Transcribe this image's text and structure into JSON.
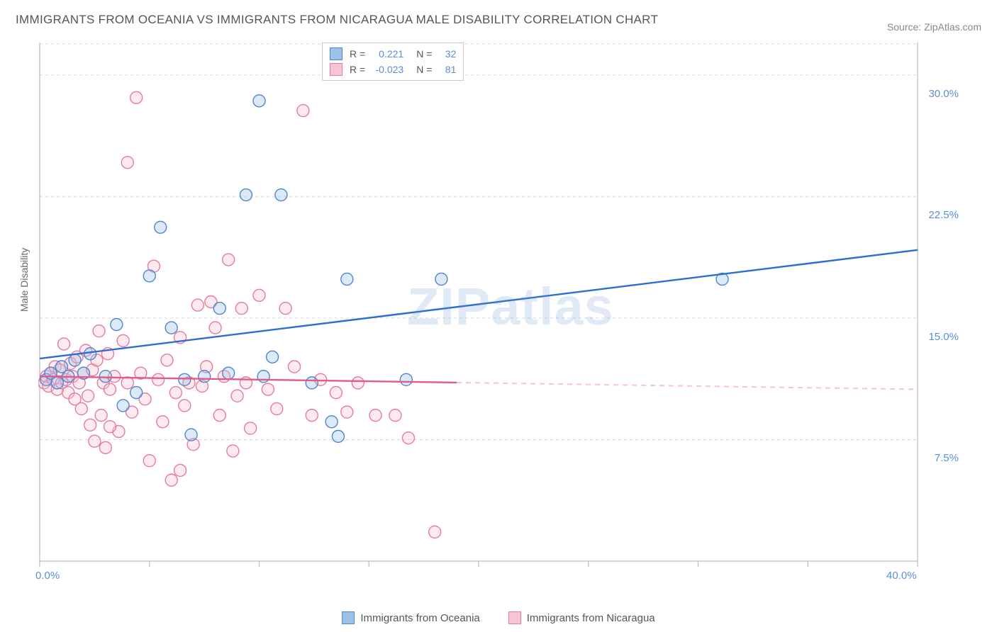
{
  "title": "IMMIGRANTS FROM OCEANIA VS IMMIGRANTS FROM NICARAGUA MALE DISABILITY CORRELATION CHART",
  "source": "Source: ZipAtlas.com",
  "watermark": "ZIPatlas",
  "y_label": "Male Disability",
  "chart": {
    "type": "scatter",
    "xlim": [
      0,
      40
    ],
    "ylim": [
      0,
      32
    ],
    "x_ticks": [
      0,
      5,
      10,
      15,
      20,
      25,
      30,
      35,
      40
    ],
    "x_tick_labels": {
      "0": "0.0%",
      "40": "40.0%"
    },
    "y_ticks": [
      7.5,
      15.0,
      22.5,
      30.0
    ],
    "y_tick_labels": [
      "7.5%",
      "15.0%",
      "22.5%",
      "30.0%"
    ],
    "grid_color": "#d9d9d9",
    "axis_color": "#bfbfbf",
    "background": "#ffffff",
    "marker_radius": 8.5,
    "marker_stroke_width": 1.4,
    "fill_opacity": 0.35
  },
  "series": [
    {
      "name": "Immigrants from Oceania",
      "color_fill": "#9cc2ec",
      "color_stroke": "#4f86d0",
      "line_color": "#2e6ecf",
      "R": "0.221",
      "N": "32",
      "trend": {
        "x1": 0,
        "y1": 12.5,
        "x2": 40,
        "y2": 19.2,
        "solid_to_x": 40
      },
      "points": [
        [
          0.3,
          11.2
        ],
        [
          0.5,
          11.6
        ],
        [
          0.8,
          11.0
        ],
        [
          1.0,
          12.0
        ],
        [
          1.3,
          11.4
        ],
        [
          1.6,
          12.4
        ],
        [
          2.0,
          11.6
        ],
        [
          2.3,
          12.8
        ],
        [
          3.0,
          11.4
        ],
        [
          3.5,
          14.6
        ],
        [
          4.4,
          10.4
        ],
        [
          5.0,
          17.6
        ],
        [
          5.5,
          20.6
        ],
        [
          6.0,
          14.4
        ],
        [
          6.6,
          11.2
        ],
        [
          7.5,
          11.4
        ],
        [
          8.2,
          15.6
        ],
        [
          8.6,
          11.6
        ],
        [
          9.4,
          22.6
        ],
        [
          10.0,
          28.4
        ],
        [
          10.2,
          11.4
        ],
        [
          10.6,
          12.6
        ],
        [
          11.0,
          22.6
        ],
        [
          12.4,
          11.0
        ],
        [
          13.3,
          8.6
        ],
        [
          13.6,
          7.7
        ],
        [
          14.0,
          17.4
        ],
        [
          16.7,
          11.2
        ],
        [
          18.3,
          17.4
        ],
        [
          31.1,
          17.4
        ],
        [
          6.9,
          7.8
        ],
        [
          3.8,
          9.6
        ]
      ]
    },
    {
      "name": "Immigrants from Nicaragua",
      "color_fill": "#f6c4d2",
      "color_stroke": "#e77aa0",
      "line_color": "#e25b88",
      "R": "-0.023",
      "N": "81",
      "trend": {
        "x1": 0,
        "y1": 11.4,
        "x2": 40,
        "y2": 10.6,
        "solid_to_x": 19
      },
      "points": [
        [
          0.2,
          11.0
        ],
        [
          0.3,
          11.4
        ],
        [
          0.4,
          10.8
        ],
        [
          0.5,
          11.6
        ],
        [
          0.6,
          11.2
        ],
        [
          0.7,
          12.0
        ],
        [
          0.8,
          10.6
        ],
        [
          0.9,
          11.8
        ],
        [
          1.0,
          11.0
        ],
        [
          1.1,
          13.4
        ],
        [
          1.2,
          11.2
        ],
        [
          1.3,
          10.4
        ],
        [
          1.4,
          12.2
        ],
        [
          1.5,
          11.4
        ],
        [
          1.6,
          10.0
        ],
        [
          1.7,
          12.6
        ],
        [
          1.8,
          11.0
        ],
        [
          1.9,
          9.4
        ],
        [
          2.0,
          11.6
        ],
        [
          2.1,
          13.0
        ],
        [
          2.2,
          10.2
        ],
        [
          2.3,
          8.4
        ],
        [
          2.4,
          11.8
        ],
        [
          2.5,
          7.4
        ],
        [
          2.6,
          12.4
        ],
        [
          2.7,
          14.2
        ],
        [
          2.8,
          9.0
        ],
        [
          2.9,
          11.0
        ],
        [
          3.0,
          7.0
        ],
        [
          3.1,
          12.8
        ],
        [
          3.2,
          10.6
        ],
        [
          3.4,
          11.4
        ],
        [
          3.6,
          8.0
        ],
        [
          3.8,
          13.6
        ],
        [
          4.0,
          11.0
        ],
        [
          4.2,
          9.2
        ],
        [
          4.4,
          28.6
        ],
        [
          4.6,
          11.6
        ],
        [
          4.8,
          10.0
        ],
        [
          5.0,
          6.2
        ],
        [
          5.2,
          18.2
        ],
        [
          5.4,
          11.2
        ],
        [
          5.6,
          8.6
        ],
        [
          5.8,
          12.4
        ],
        [
          6.0,
          5.0
        ],
        [
          6.2,
          10.4
        ],
        [
          6.4,
          13.8
        ],
        [
          6.6,
          9.6
        ],
        [
          6.8,
          11.0
        ],
        [
          7.0,
          7.2
        ],
        [
          7.2,
          15.8
        ],
        [
          7.4,
          10.8
        ],
        [
          7.6,
          12.0
        ],
        [
          7.8,
          16.0
        ],
        [
          8.0,
          14.4
        ],
        [
          8.2,
          9.0
        ],
        [
          8.4,
          11.4
        ],
        [
          8.6,
          18.6
        ],
        [
          8.8,
          6.8
        ],
        [
          9.0,
          10.2
        ],
        [
          9.2,
          15.6
        ],
        [
          9.4,
          11.0
        ],
        [
          9.6,
          8.2
        ],
        [
          10.0,
          16.4
        ],
        [
          10.4,
          10.6
        ],
        [
          10.8,
          9.4
        ],
        [
          11.2,
          15.6
        ],
        [
          11.6,
          12.0
        ],
        [
          12.0,
          27.8
        ],
        [
          12.4,
          9.0
        ],
        [
          12.8,
          11.2
        ],
        [
          13.5,
          10.4
        ],
        [
          14.0,
          9.2
        ],
        [
          14.5,
          11.0
        ],
        [
          15.3,
          9.0
        ],
        [
          16.2,
          9.0
        ],
        [
          16.8,
          7.6
        ],
        [
          18.0,
          1.8
        ],
        [
          4.0,
          24.6
        ],
        [
          6.4,
          5.6
        ],
        [
          3.2,
          8.3
        ]
      ]
    }
  ],
  "legend_top": {
    "R_label": "R =",
    "N_label": "N ="
  },
  "bottom_legend": [
    {
      "label": "Immigrants from Oceania",
      "fill": "#9cc2ec",
      "stroke": "#4f86d0"
    },
    {
      "label": "Immigrants from Nicaragua",
      "fill": "#f6c4d2",
      "stroke": "#e77aa0"
    }
  ]
}
